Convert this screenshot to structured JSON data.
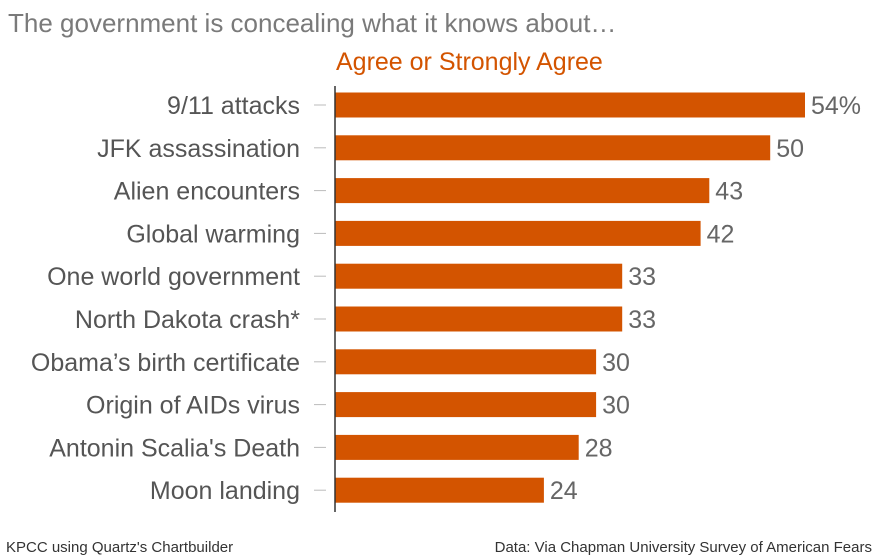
{
  "chart_data": {
    "type": "bar",
    "orientation": "horizontal",
    "title": "The government is concealing what it knows about…",
    "series": [
      {
        "name": "Agree or Strongly Agree",
        "color": "#d35400",
        "values": [
          54,
          50,
          43,
          42,
          33,
          33,
          30,
          30,
          28,
          24
        ]
      }
    ],
    "categories": [
      "9/11 attacks",
      "JFK assassination",
      "Alien encounters",
      "Global warming",
      "One world government",
      "North Dakota crash*",
      "Obama’s birth certificate",
      "Origin of AIDs virus",
      "Antonin Scalia's Death",
      "Moon landing"
    ],
    "value_labels": [
      "54%",
      "50",
      "43",
      "42",
      "33",
      "33",
      "30",
      "30",
      "28",
      "24"
    ],
    "xlim": [
      0,
      54
    ],
    "grid": false,
    "legend": "top"
  },
  "footer": {
    "left": "KPCC using Quartz's Chartbuilder",
    "right": "Data: Via Chapman University Survey of American Fears"
  },
  "colors": {
    "bar": "#d35400",
    "title": "#7a7a7a",
    "axis": "#333333"
  }
}
